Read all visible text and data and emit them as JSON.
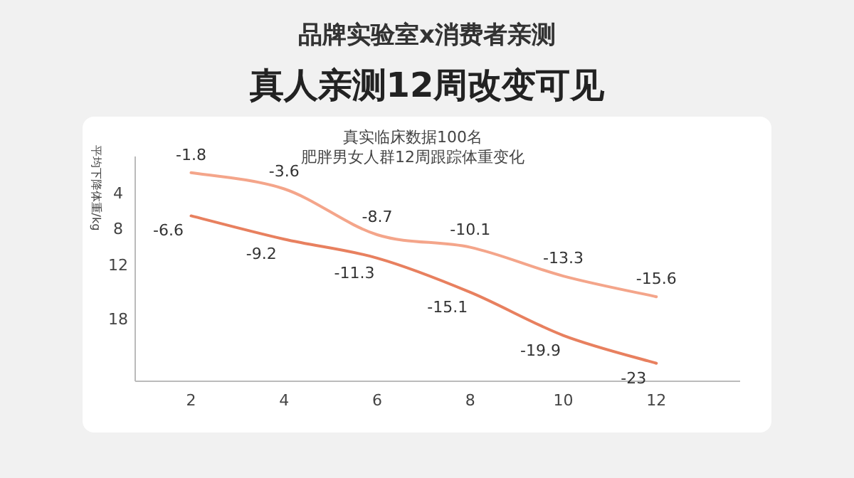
{
  "chart_data": {
    "type": "line",
    "title": "品牌实验室x消费者亲测",
    "subtitle": "真人亲测12周改变可见",
    "ylabel": "平均下降体重/kg",
    "annotations": [
      "真实临床数据100名",
      "肥胖男女人群12周跟踪体重变化"
    ],
    "x": [
      2,
      4,
      6,
      8,
      10,
      12
    ],
    "series": [
      {
        "color": "#f4a58a",
        "values": [
          -1.8,
          -3.6,
          -8.7,
          -10.1,
          -13.3,
          -15.6
        ]
      },
      {
        "color": "#e8805f",
        "values": [
          -6.6,
          -9.2,
          -11.3,
          -15.1,
          -19.9,
          -23
        ]
      }
    ],
    "xlim": [
      0.8,
      13.8
    ],
    "xticks": [
      2,
      4,
      6,
      8,
      10,
      12
    ],
    "ylim": [
      -25,
      0
    ],
    "yticks": [
      {
        "value": -4,
        "label": "4"
      },
      {
        "value": -8,
        "label": "8"
      },
      {
        "value": -12,
        "label": "12"
      },
      {
        "value": -18,
        "label": "18"
      }
    ],
    "data_labels": true,
    "grid": false,
    "marker": "none",
    "line_style": "solid"
  }
}
